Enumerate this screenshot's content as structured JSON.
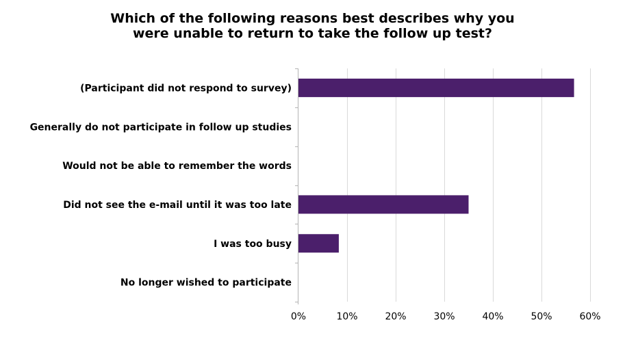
{
  "chart_data": {
    "type": "bar",
    "orientation": "horizontal",
    "title_lines": [
      "Which of the following reasons best describes why you",
      "were unable to return to take the follow up test?"
    ],
    "categories": [
      "(Participant did not respond to survey)",
      "Generally do not participate in follow up studies",
      "Would not be able to remember the words",
      "Did not see the e-mail until it was too late",
      "I was too busy",
      "No longer wished to participate"
    ],
    "values": [
      56.7,
      0,
      0,
      35.0,
      8.3,
      0
    ],
    "value_unit": "%",
    "xlim": [
      0,
      60
    ],
    "x_ticks": [
      0,
      10,
      20,
      30,
      40,
      50,
      60
    ],
    "x_tick_labels": [
      "0%",
      "10%",
      "20%",
      "30%",
      "40%",
      "50%",
      "60%"
    ],
    "grid": true,
    "legend": "none",
    "colors": {
      "bar": "#4b1f6b",
      "grid": "#d9d9d9",
      "axis": "#b3b3b3"
    }
  }
}
